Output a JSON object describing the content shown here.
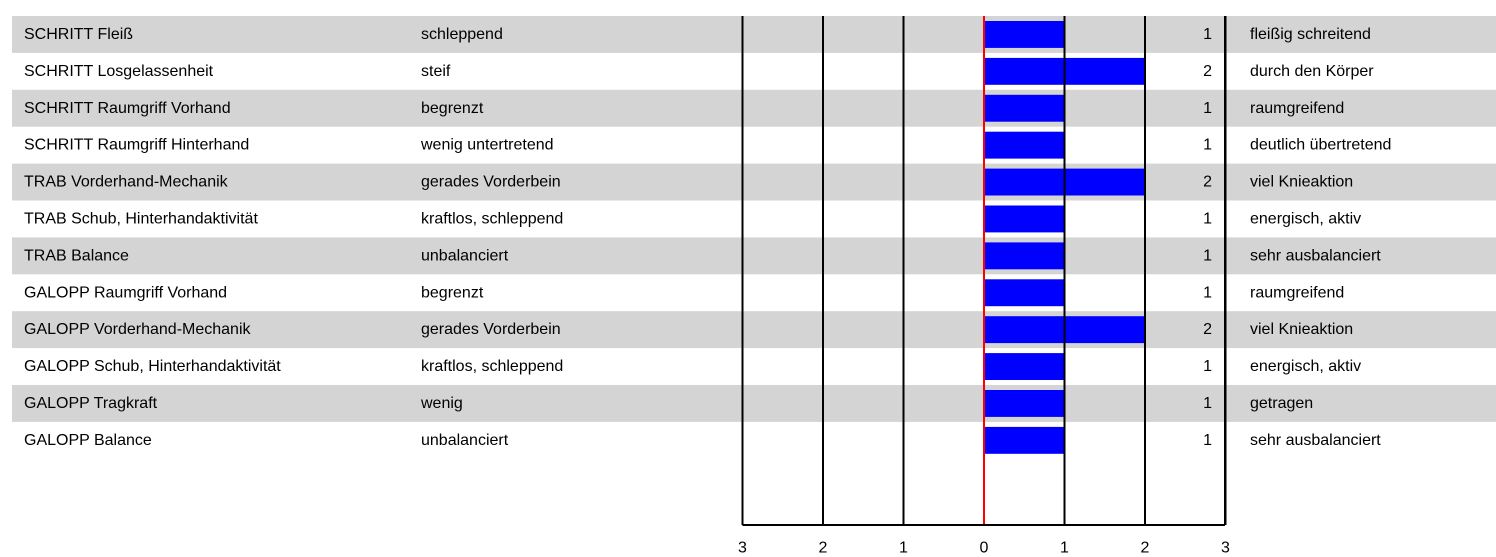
{
  "chart_data": {
    "type": "bar",
    "orientation": "horizontal",
    "criteria": [
      "SCHRITT Fleiß",
      "SCHRITT Losgelassenheit",
      "SCHRITT Raumgriff Vorhand",
      "SCHRITT Raumgriff Hinterhand",
      "TRAB Vorderhand-Mechanik",
      "TRAB Schub, Hinterhandaktivität",
      "TRAB Balance",
      "GALOPP Raumgriff Vorhand",
      "GALOPP Vorderhand-Mechanik",
      "GALOPP Schub, Hinterhandaktivität",
      "GALOPP Tragkraft",
      "GALOPP Balance"
    ],
    "left_labels": [
      "schleppend",
      "steif",
      "begrenzt",
      "wenig untertretend",
      "gerades Vorderbein",
      "kraftlos, schleppend",
      "unbalanciert",
      "begrenzt",
      "gerades Vorderbein",
      "kraftlos, schleppend",
      "wenig",
      "unbalanciert"
    ],
    "right_labels": [
      "fleißig schreitend",
      "durch den Körper",
      "raumgreifend",
      "deutlich übertretend",
      "viel Knieaktion",
      "energisch, aktiv",
      "sehr ausbalanciert",
      "raumgreifend",
      "viel Knieaktion",
      "energisch, aktiv",
      "getragen",
      "sehr ausbalanciert"
    ],
    "values": [
      1,
      2,
      1,
      1,
      2,
      1,
      1,
      1,
      2,
      1,
      1,
      1
    ],
    "value_labels": [
      "1",
      "2",
      "1",
      "1",
      "2",
      "1",
      "1",
      "1",
      "2",
      "1",
      "1",
      "1"
    ],
    "xlim": [
      -3,
      3
    ],
    "tick_labels": [
      "3",
      "2",
      "1",
      "0",
      "1",
      "2",
      "3"
    ],
    "grid": true,
    "colors": {
      "bar": "#0000ff",
      "zero_line": "#ff0000",
      "row_band": "#d4d4d4",
      "grid": "#000000"
    }
  }
}
